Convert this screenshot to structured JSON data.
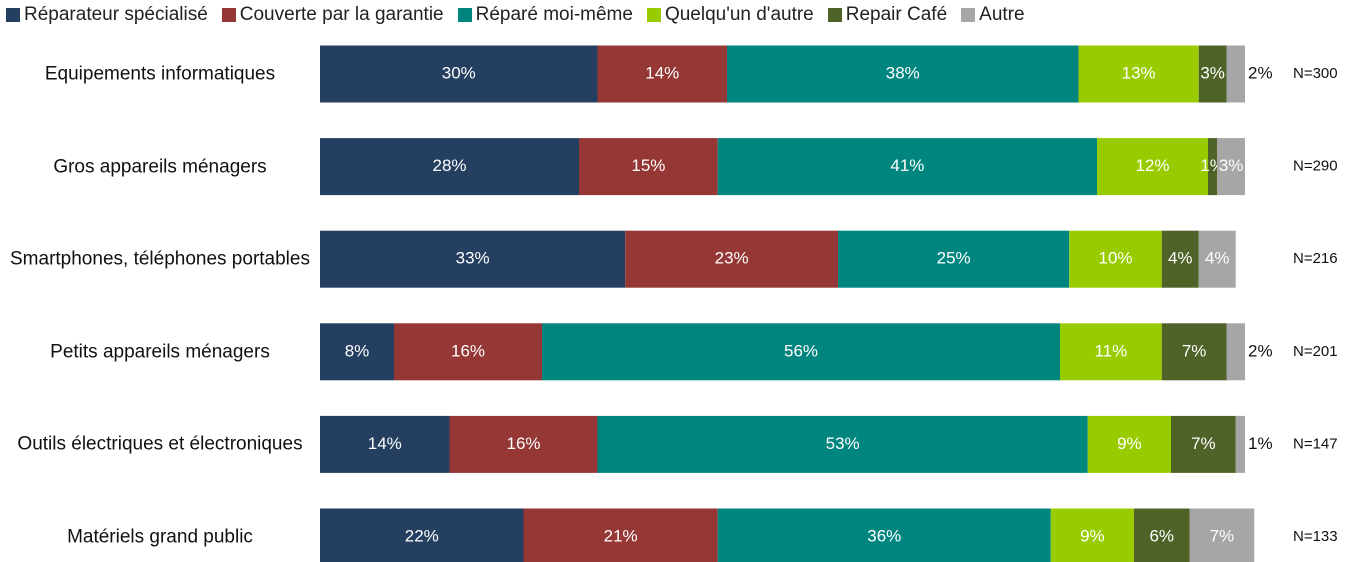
{
  "chart_data": {
    "type": "stacked-bar-horizontal",
    "categories": [
      "Equipements informatiques",
      "Gros appareils ménagers",
      "Smartphones, téléphones portables",
      "Petits appareils ménagers",
      "Outils électriques et électroniques",
      "Matériels grand public"
    ],
    "n_labels": [
      "N=300",
      "N=290",
      "N=216",
      "N=201",
      "N=147",
      "N=133"
    ],
    "xlim": [
      0,
      100
    ],
    "legend": "top",
    "series": [
      {
        "name": "Réparateur spécialisé",
        "color": "#243f60",
        "values": [
          30,
          28,
          33,
          8,
          14,
          22
        ],
        "value_labels": [
          "30%",
          "28%",
          "33%",
          "8%",
          "14%",
          "22%"
        ]
      },
      {
        "name": "Couverte par la garantie",
        "color": "#953735",
        "values": [
          14,
          15,
          23,
          16,
          16,
          21
        ],
        "value_labels": [
          "14%",
          "15%",
          "23%",
          "16%",
          "16%",
          "21%"
        ]
      },
      {
        "name": "Réparé moi-même",
        "color": "#00857f",
        "values": [
          38,
          41,
          25,
          56,
          53,
          36
        ],
        "value_labels": [
          "38%",
          "41%",
          "25%",
          "56%",
          "53%",
          "36%"
        ]
      },
      {
        "name": "Quelqu'un d'autre",
        "color": "#99cc00",
        "values": [
          13,
          12,
          10,
          11,
          9,
          9
        ],
        "value_labels": [
          "13%",
          "12%",
          "10%",
          "11%",
          "9%",
          "9%"
        ]
      },
      {
        "name": "Repair Café",
        "color": "#4f6228",
        "values": [
          3,
          1,
          4,
          7,
          7,
          6
        ],
        "value_labels": [
          "3%",
          "1%",
          "4%",
          "7%",
          "7%",
          "6%"
        ]
      },
      {
        "name": "Autre",
        "color": "#a6a6a6",
        "values": [
          2,
          3,
          4,
          2,
          1,
          7
        ],
        "value_labels": [
          "2%",
          "3%",
          "4%",
          "2%",
          "1%",
          "7%"
        ]
      }
    ]
  }
}
